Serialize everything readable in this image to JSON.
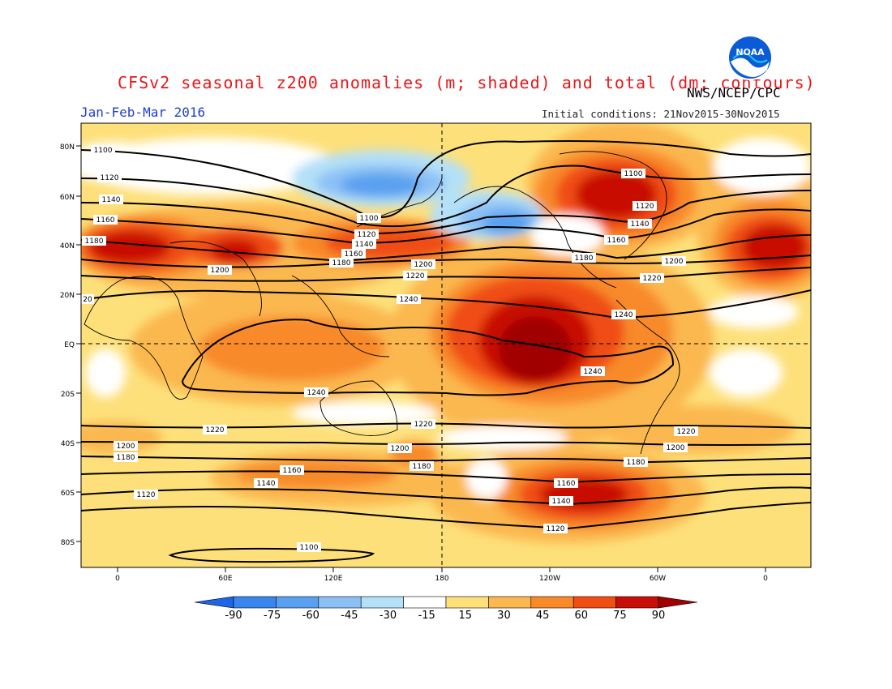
{
  "title": "CFSv2 seasonal z200 anomalies (m; shaded) and total (dm; contours)",
  "org": "NWS/NCEP/CPC",
  "period": "Jan-Feb-Mar 2016",
  "initial_conditions": "Initial conditions: 21Nov2015-30Nov2015",
  "logo_text": "NOAA",
  "lat_labels": [
    "80N",
    "60N",
    "40N",
    "20N",
    "EQ",
    "20S",
    "40S",
    "60S",
    "80S"
  ],
  "lon_labels": [
    "0",
    "60E",
    "120E",
    "180",
    "120W",
    "60W",
    "0"
  ],
  "colorbar": {
    "ticks": [
      "-90",
      "-75",
      "-60",
      "-45",
      "-30",
      "-15",
      "15",
      "30",
      "45",
      "60",
      "75",
      "90"
    ],
    "colors": [
      "#1e64e6",
      "#3a86ee",
      "#5aa0f0",
      "#8cc0f5",
      "#b4e0f8",
      "#ffffff",
      "#fde07a",
      "#fbb850",
      "#f88a2a",
      "#f04e12",
      "#c80e06",
      "#a00000"
    ]
  },
  "contour_labels": {
    "c1100": "1100",
    "c1120": "1120",
    "c1140": "1140",
    "c1160": "1160",
    "c1180": "1180",
    "c1200": "1200",
    "c1220": "1220",
    "c1240": "1240",
    "c20": "20"
  }
}
